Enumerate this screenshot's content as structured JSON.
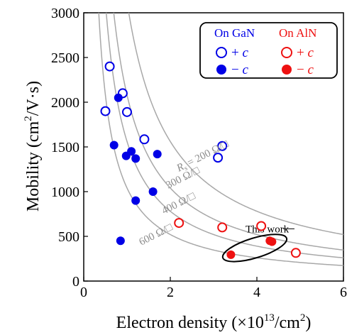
{
  "chart_data": {
    "type": "scatter",
    "xlabel_prefix": "Electron density (×10",
    "xlabel_sup": "13",
    "xlabel_mid": "/cm",
    "xlabel_sup2": "2",
    "xlabel_suffix": ")",
    "ylabel_prefix": "Mobility (cm",
    "ylabel_sup": "2",
    "ylabel_suffix": "/V·s)",
    "xlim": [
      0,
      6
    ],
    "ylim": [
      0,
      3000
    ],
    "x_ticks": [
      0,
      2,
      4,
      6
    ],
    "y_ticks": [
      0,
      500,
      1000,
      1500,
      2000,
      2500,
      3000
    ],
    "legend_position": "top-right",
    "legend_groups": [
      {
        "title": "On GaN",
        "color": "#0000e6",
        "entries": [
          "+c",
          "−c"
        ]
      },
      {
        "title": "On AlN",
        "color": "#ee1111",
        "entries": [
          "+c",
          "−c"
        ]
      }
    ],
    "series": [
      {
        "name": "On GaN +c",
        "color": "#0000e6",
        "filled": false,
        "points": [
          [
            0.6,
            2400
          ],
          [
            0.9,
            2100
          ],
          [
            0.5,
            1900
          ],
          [
            1.0,
            1890
          ],
          [
            1.4,
            1585
          ],
          [
            3.2,
            1510
          ],
          [
            3.1,
            1380
          ]
        ]
      },
      {
        "name": "On GaN −c",
        "color": "#0000e6",
        "filled": true,
        "points": [
          [
            0.8,
            2050
          ],
          [
            0.7,
            1520
          ],
          [
            1.1,
            1450
          ],
          [
            0.98,
            1400
          ],
          [
            1.2,
            1370
          ],
          [
            1.7,
            1420
          ],
          [
            1.6,
            1000
          ],
          [
            1.2,
            900
          ],
          [
            0.85,
            450
          ]
        ]
      },
      {
        "name": "On AlN +c",
        "color": "#ee1111",
        "filled": false,
        "points": [
          [
            2.2,
            650
          ],
          [
            3.2,
            600
          ],
          [
            4.1,
            615
          ],
          [
            4.9,
            315
          ]
        ]
      },
      {
        "name": "On AlN −c",
        "color": "#ee1111",
        "filled": true,
        "points": [
          [
            3.4,
            295
          ],
          [
            4.3,
            450
          ],
          [
            4.35,
            440
          ]
        ]
      }
    ],
    "sheet_resistance_curves": [
      {
        "rs": 200,
        "label_prefix": "R",
        "label_sub": "s",
        "label_suffix": " = 200 Ω/□"
      },
      {
        "rs": 300,
        "label": "300 Ω/□"
      },
      {
        "rs": 400,
        "label": "400 Ω/□"
      },
      {
        "rs": 600,
        "label": "600 Ω/□"
      }
    ],
    "annotation": {
      "text": "This work",
      "ellipse_center": [
        3.95,
        370
      ]
    }
  }
}
